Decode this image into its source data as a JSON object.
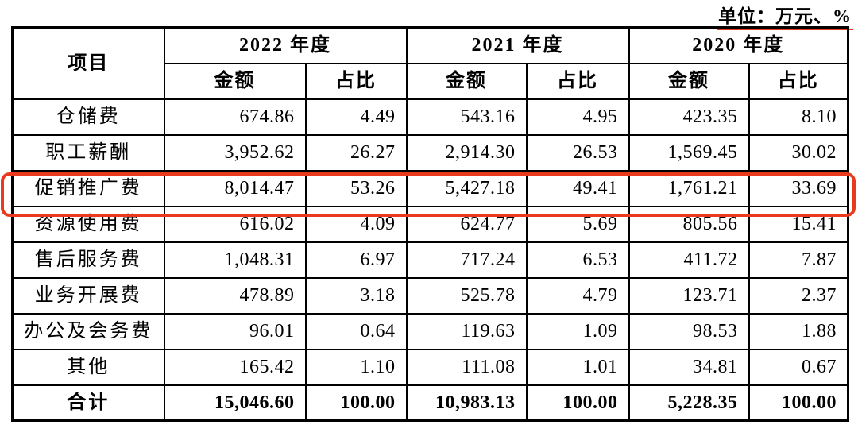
{
  "unit_label": "单位：万元、%",
  "colors": {
    "accent_red": "#e93a1e",
    "border_black": "#000000"
  },
  "table": {
    "item_header": "项目",
    "year_headers": [
      "2022 年度",
      "2021 年度",
      "2020 年度"
    ],
    "amount_label": "金额",
    "ratio_label": "占比",
    "rows": [
      {
        "label": "仓储费",
        "values": [
          "674.86",
          "4.49",
          "543.16",
          "4.95",
          "423.35",
          "8.10"
        ],
        "highlighted": false,
        "total": false
      },
      {
        "label": "职工薪酬",
        "values": [
          "3,952.62",
          "26.27",
          "2,914.30",
          "26.53",
          "1,569.45",
          "30.02"
        ],
        "highlighted": false,
        "total": false
      },
      {
        "label": "促销推广费",
        "values": [
          "8,014.47",
          "53.26",
          "5,427.18",
          "49.41",
          "1,761.21",
          "33.69"
        ],
        "highlighted": true,
        "total": false
      },
      {
        "label": "资源使用费",
        "values": [
          "616.02",
          "4.09",
          "624.77",
          "5.69",
          "805.56",
          "15.41"
        ],
        "highlighted": false,
        "total": false
      },
      {
        "label": "售后服务费",
        "values": [
          "1,048.31",
          "6.97",
          "717.24",
          "6.53",
          "411.72",
          "7.87"
        ],
        "highlighted": false,
        "total": false
      },
      {
        "label": "业务开展费",
        "values": [
          "478.89",
          "3.18",
          "525.78",
          "4.79",
          "123.71",
          "2.37"
        ],
        "highlighted": false,
        "total": false
      },
      {
        "label": "办公及会务费",
        "values": [
          "96.01",
          "0.64",
          "119.63",
          "1.09",
          "98.53",
          "1.88"
        ],
        "highlighted": false,
        "total": false
      },
      {
        "label": "其他",
        "values": [
          "165.42",
          "1.10",
          "111.08",
          "1.01",
          "34.81",
          "0.67"
        ],
        "highlighted": false,
        "total": false
      },
      {
        "label": "合计",
        "values": [
          "15,046.60",
          "100.00",
          "10,983.13",
          "100.00",
          "5,228.35",
          "100.00"
        ],
        "highlighted": false,
        "total": true
      }
    ]
  }
}
